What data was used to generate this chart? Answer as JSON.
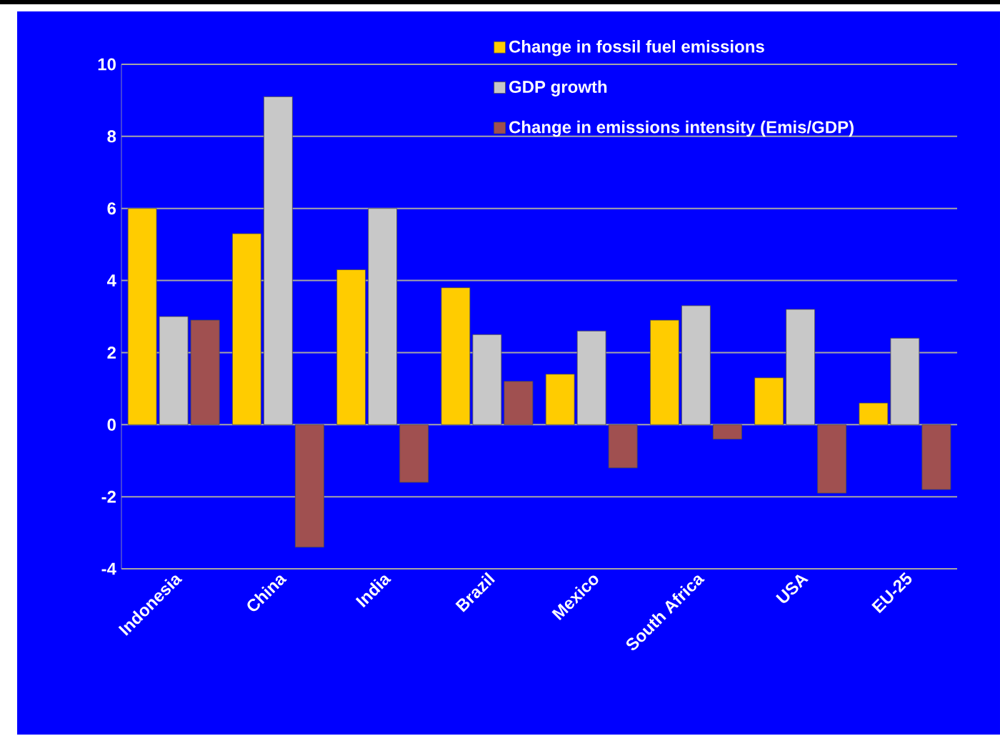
{
  "chart_data": {
    "type": "bar",
    "categories": [
      "Indonesia",
      "China",
      "India",
      "Brazil",
      "Mexico",
      "South Africa",
      "USA",
      "EU-25"
    ],
    "series": [
      {
        "name": "Change in fossil fuel emissions",
        "color": "#ffcc00",
        "values": [
          6.0,
          5.3,
          4.3,
          3.8,
          1.4,
          2.9,
          1.3,
          0.6
        ]
      },
      {
        "name": "GDP growth",
        "color": "#c8c8c8",
        "values": [
          3.0,
          9.1,
          6.0,
          2.5,
          2.6,
          3.3,
          3.2,
          2.4
        ]
      },
      {
        "name": "Change in emissions intensity (Emis/GDP)",
        "color": "#a05050",
        "values": [
          2.9,
          -3.4,
          -1.6,
          1.2,
          -1.2,
          -0.4,
          -1.9,
          -1.8
        ]
      }
    ],
    "ylim": [
      -4,
      10
    ],
    "yticks": [
      -4,
      -2,
      0,
      2,
      4,
      6,
      8,
      10
    ],
    "grid": "y",
    "legend": "top right"
  }
}
